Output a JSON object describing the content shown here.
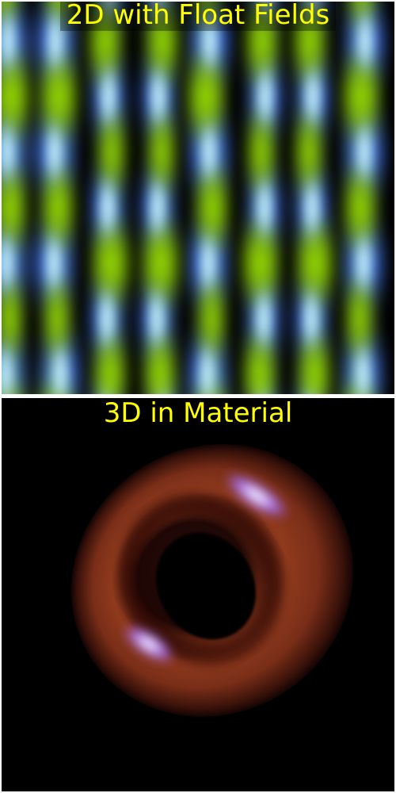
{
  "panels": {
    "top": {
      "title": "2D with Float Fields",
      "colors": {
        "green": "#99dd00",
        "blue": "#4a7dff",
        "cyan": "#c8f4ff",
        "background": "#000000"
      }
    },
    "bottom": {
      "title": "3D in Material",
      "colors": {
        "surface": "#8a3318",
        "highlight": "#b98cff",
        "background": "#000000"
      }
    }
  },
  "colors": {
    "title_text": "#ffff00",
    "border": "#ffffff"
  }
}
